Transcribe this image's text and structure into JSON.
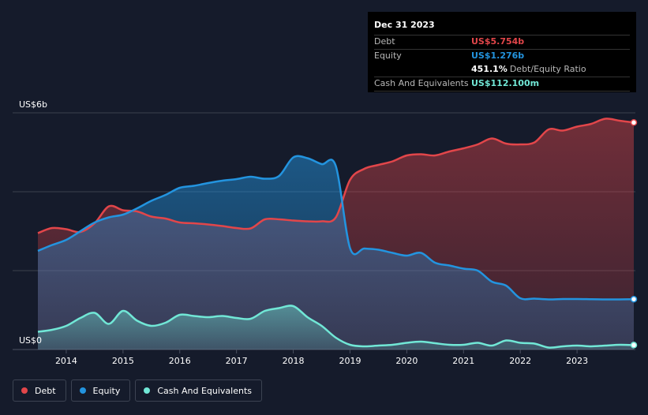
{
  "colors": {
    "debt": "#e2464a",
    "equity": "#2394df",
    "cash": "#71e7d6",
    "background": "#151b2b"
  },
  "tooltip": {
    "date": "Dec 31 2023",
    "debt_label": "Debt",
    "debt_value": "US$5.754b",
    "equity_label": "Equity",
    "equity_value": "US$1.276b",
    "ratio_value": "451.1%",
    "ratio_label": "Debt/Equity Ratio",
    "cash_label": "Cash And Equivalents",
    "cash_value": "US$112.100m"
  },
  "legend": {
    "debt": "Debt",
    "equity": "Equity",
    "cash": "Cash And Equivalents"
  },
  "chart_data": {
    "type": "area",
    "title": "",
    "xlabel": "",
    "ylabel": "",
    "y_top_label": "US$6b",
    "y_bottom_label": "US$0",
    "xlim": [
      2013.5,
      2024.0
    ],
    "ylim": [
      0,
      6.0
    ],
    "x_ticks": [
      2014,
      2015,
      2016,
      2017,
      2018,
      2019,
      2020,
      2021,
      2022,
      2023
    ],
    "x_tick_labels": [
      "2014",
      "2015",
      "2016",
      "2017",
      "2018",
      "2019",
      "2020",
      "2021",
      "2022",
      "2023"
    ],
    "series": [
      {
        "name": "Debt",
        "points": [
          [
            2013.5,
            2.95
          ],
          [
            2013.75,
            3.08
          ],
          [
            2014.0,
            3.05
          ],
          [
            2014.25,
            2.98
          ],
          [
            2014.5,
            3.2
          ],
          [
            2014.75,
            3.63
          ],
          [
            2015.0,
            3.53
          ],
          [
            2015.25,
            3.5
          ],
          [
            2015.5,
            3.37
          ],
          [
            2015.75,
            3.32
          ],
          [
            2016.0,
            3.22
          ],
          [
            2016.25,
            3.2
          ],
          [
            2016.5,
            3.17
          ],
          [
            2016.75,
            3.13
          ],
          [
            2017.0,
            3.08
          ],
          [
            2017.25,
            3.07
          ],
          [
            2017.5,
            3.3
          ],
          [
            2017.75,
            3.3
          ],
          [
            2018.0,
            3.27
          ],
          [
            2018.25,
            3.25
          ],
          [
            2018.5,
            3.25
          ],
          [
            2018.75,
            3.35
          ],
          [
            2019.0,
            4.3
          ],
          [
            2019.25,
            4.58
          ],
          [
            2019.5,
            4.68
          ],
          [
            2019.75,
            4.77
          ],
          [
            2020.0,
            4.92
          ],
          [
            2020.25,
            4.95
          ],
          [
            2020.5,
            4.92
          ],
          [
            2020.75,
            5.02
          ],
          [
            2021.0,
            5.1
          ],
          [
            2021.25,
            5.2
          ],
          [
            2021.5,
            5.35
          ],
          [
            2021.75,
            5.22
          ],
          [
            2022.0,
            5.2
          ],
          [
            2022.25,
            5.25
          ],
          [
            2022.5,
            5.58
          ],
          [
            2022.75,
            5.55
          ],
          [
            2023.0,
            5.65
          ],
          [
            2023.25,
            5.72
          ],
          [
            2023.5,
            5.85
          ],
          [
            2023.75,
            5.8
          ],
          [
            2024.0,
            5.754
          ]
        ]
      },
      {
        "name": "Equity",
        "points": [
          [
            2013.5,
            2.5
          ],
          [
            2013.75,
            2.65
          ],
          [
            2014.0,
            2.78
          ],
          [
            2014.25,
            3.0
          ],
          [
            2014.5,
            3.22
          ],
          [
            2014.75,
            3.35
          ],
          [
            2015.0,
            3.42
          ],
          [
            2015.25,
            3.58
          ],
          [
            2015.5,
            3.77
          ],
          [
            2015.75,
            3.92
          ],
          [
            2016.0,
            4.1
          ],
          [
            2016.25,
            4.15
          ],
          [
            2016.5,
            4.22
          ],
          [
            2016.75,
            4.28
          ],
          [
            2017.0,
            4.32
          ],
          [
            2017.25,
            4.38
          ],
          [
            2017.5,
            4.33
          ],
          [
            2017.75,
            4.4
          ],
          [
            2018.0,
            4.87
          ],
          [
            2018.25,
            4.85
          ],
          [
            2018.5,
            4.7
          ],
          [
            2018.75,
            4.65
          ],
          [
            2019.0,
            2.57
          ],
          [
            2019.25,
            2.56
          ],
          [
            2019.5,
            2.53
          ],
          [
            2019.75,
            2.45
          ],
          [
            2020.0,
            2.38
          ],
          [
            2020.25,
            2.45
          ],
          [
            2020.5,
            2.2
          ],
          [
            2020.75,
            2.13
          ],
          [
            2021.0,
            2.05
          ],
          [
            2021.25,
            2.0
          ],
          [
            2021.5,
            1.72
          ],
          [
            2021.75,
            1.62
          ],
          [
            2022.0,
            1.3
          ],
          [
            2022.25,
            1.29
          ],
          [
            2022.5,
            1.27
          ],
          [
            2022.75,
            1.28
          ],
          [
            2023.0,
            1.28
          ],
          [
            2023.25,
            1.275
          ],
          [
            2023.5,
            1.27
          ],
          [
            2023.75,
            1.27
          ],
          [
            2024.0,
            1.276
          ]
        ]
      },
      {
        "name": "Cash And Equivalents",
        "points": [
          [
            2013.5,
            0.45
          ],
          [
            2013.75,
            0.5
          ],
          [
            2014.0,
            0.6
          ],
          [
            2014.25,
            0.8
          ],
          [
            2014.5,
            0.93
          ],
          [
            2014.75,
            0.65
          ],
          [
            2015.0,
            0.98
          ],
          [
            2015.25,
            0.73
          ],
          [
            2015.5,
            0.6
          ],
          [
            2015.75,
            0.68
          ],
          [
            2016.0,
            0.88
          ],
          [
            2016.25,
            0.85
          ],
          [
            2016.5,
            0.82
          ],
          [
            2016.75,
            0.85
          ],
          [
            2017.0,
            0.8
          ],
          [
            2017.25,
            0.78
          ],
          [
            2017.5,
            0.98
          ],
          [
            2017.75,
            1.05
          ],
          [
            2018.0,
            1.1
          ],
          [
            2018.25,
            0.82
          ],
          [
            2018.5,
            0.6
          ],
          [
            2018.75,
            0.3
          ],
          [
            2019.0,
            0.12
          ],
          [
            2019.25,
            0.08
          ],
          [
            2019.5,
            0.1
          ],
          [
            2019.75,
            0.12
          ],
          [
            2020.0,
            0.17
          ],
          [
            2020.25,
            0.2
          ],
          [
            2020.5,
            0.16
          ],
          [
            2020.75,
            0.12
          ],
          [
            2021.0,
            0.12
          ],
          [
            2021.25,
            0.17
          ],
          [
            2021.5,
            0.1
          ],
          [
            2021.75,
            0.23
          ],
          [
            2022.0,
            0.17
          ],
          [
            2022.25,
            0.15
          ],
          [
            2022.5,
            0.05
          ],
          [
            2022.75,
            0.08
          ],
          [
            2023.0,
            0.1
          ],
          [
            2023.25,
            0.08
          ],
          [
            2023.5,
            0.1
          ],
          [
            2023.75,
            0.12
          ],
          [
            2024.0,
            0.112
          ]
        ]
      }
    ]
  }
}
